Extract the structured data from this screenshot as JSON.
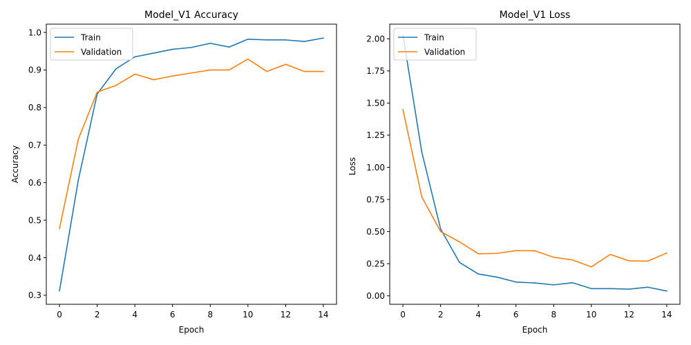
{
  "chart_data": [
    {
      "type": "line",
      "title": "Model_V1 Accuracy",
      "xlabel": "Epoch",
      "ylabel": "Accuracy",
      "xlim": [
        -0.7,
        14.7
      ],
      "ylim": [
        0.276,
        1.022
      ],
      "xticks": [
        0,
        2,
        4,
        6,
        8,
        10,
        12,
        14
      ],
      "xtick_labels": [
        "0",
        "2",
        "4",
        "6",
        "8",
        "10",
        "12",
        "14"
      ],
      "yticks": [
        0.3,
        0.4,
        0.5,
        0.6,
        0.7,
        0.8,
        0.9,
        1.0
      ],
      "ytick_labels": [
        "0.3",
        "0.4",
        "0.5",
        "0.6",
        "0.7",
        "0.8",
        "0.9",
        "1.0"
      ],
      "grid": false,
      "legend": "upper left",
      "x": [
        0,
        1,
        2,
        3,
        4,
        5,
        6,
        7,
        8,
        9,
        10,
        11,
        12,
        13,
        14
      ],
      "series": [
        {
          "name": "Train",
          "color": "#1f77b4",
          "values": [
            0.312,
            0.607,
            0.836,
            0.903,
            0.935,
            0.945,
            0.955,
            0.96,
            0.971,
            0.961,
            0.982,
            0.98,
            0.98,
            0.976,
            0.985
          ]
        },
        {
          "name": "Validation",
          "color": "#ff7f0e",
          "values": [
            0.478,
            0.716,
            0.841,
            0.859,
            0.889,
            0.874,
            0.884,
            0.892,
            0.9,
            0.9,
            0.929,
            0.896,
            0.915,
            0.896,
            0.896
          ]
        }
      ]
    },
    {
      "type": "line",
      "title": "Model_V1 Loss",
      "xlabel": "Epoch",
      "ylabel": "Loss",
      "xlim": [
        -0.7,
        14.7
      ],
      "ylim": [
        -0.066,
        2.114
      ],
      "xticks": [
        0,
        2,
        4,
        6,
        8,
        10,
        12,
        14
      ],
      "xtick_labels": [
        "0",
        "2",
        "4",
        "6",
        "8",
        "10",
        "12",
        "14"
      ],
      "yticks": [
        0,
        0.25,
        0.5,
        0.75,
        1.0,
        1.25,
        1.5,
        1.75,
        2.0
      ],
      "ytick_labels": [
        "0.00",
        "0.25",
        "0.50",
        "0.75",
        "1.00",
        "1.25",
        "1.50",
        "1.75",
        "2.00"
      ],
      "grid": false,
      "legend": "upper left",
      "x": [
        0,
        1,
        2,
        3,
        4,
        5,
        6,
        7,
        8,
        9,
        10,
        11,
        12,
        13,
        14
      ],
      "series": [
        {
          "name": "Train",
          "color": "#1f77b4",
          "values": [
            2.03,
            1.12,
            0.52,
            0.26,
            0.17,
            0.145,
            0.107,
            0.1,
            0.085,
            0.102,
            0.056,
            0.056,
            0.052,
            0.067,
            0.037
          ]
        },
        {
          "name": "Validation",
          "color": "#ff7f0e",
          "values": [
            1.45,
            0.77,
            0.5,
            0.42,
            0.327,
            0.33,
            0.352,
            0.35,
            0.3,
            0.279,
            0.225,
            0.322,
            0.272,
            0.27,
            0.333
          ]
        }
      ]
    }
  ]
}
